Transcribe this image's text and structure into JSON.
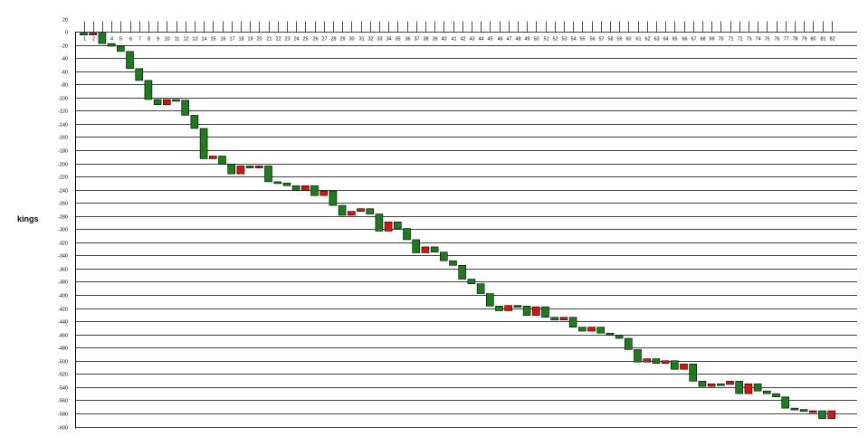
{
  "chart_data": {
    "type": "candlestick",
    "ylabel": "kings",
    "ylim": [
      -600,
      20
    ],
    "yticks": [
      20,
      0,
      -20,
      -40,
      -60,
      -80,
      -100,
      -120,
      -140,
      -160,
      -180,
      -200,
      -220,
      -240,
      -260,
      -280,
      -300,
      -320,
      -340,
      -360,
      -380,
      -400,
      -420,
      -440,
      -460,
      -480,
      -500,
      -520,
      -540,
      -560,
      -580,
      -600
    ],
    "categories": [
      "1",
      "2",
      "3",
      "4",
      "5",
      "6",
      "7",
      "8",
      "9",
      "10",
      "11",
      "12",
      "13",
      "14",
      "15",
      "16",
      "17",
      "18",
      "19",
      "20",
      "21",
      "22",
      "23",
      "24",
      "25",
      "26",
      "27",
      "28",
      "29",
      "30",
      "31",
      "32",
      "33",
      "34",
      "35",
      "36",
      "37",
      "38",
      "39",
      "40",
      "41",
      "42",
      "43",
      "44",
      "45",
      "46",
      "47",
      "48",
      "49",
      "50",
      "51",
      "52",
      "53",
      "54",
      "55",
      "56",
      "57",
      "58",
      "59",
      "60",
      "61",
      "62",
      "63",
      "64",
      "65",
      "66",
      "67",
      "68",
      "69",
      "70",
      "71",
      "72",
      "73",
      "74",
      "75",
      "76",
      "77",
      "78",
      "79",
      "80",
      "81",
      "82"
    ],
    "up_color": "#1e7b1e",
    "down_color": "#dd1111",
    "grid": true,
    "candles": [
      {
        "open": -2,
        "close": -5
      },
      {
        "open": -5,
        "close": -2
      },
      {
        "open": -2,
        "close": -18
      },
      {
        "open": -18,
        "close": -22
      },
      {
        "open": -22,
        "close": -30
      },
      {
        "open": -30,
        "close": -56
      },
      {
        "open": -56,
        "close": -74
      },
      {
        "open": -74,
        "close": -103
      },
      {
        "open": -103,
        "close": -111
      },
      {
        "open": -111,
        "close": -103
      },
      {
        "open": -103,
        "close": -104
      },
      {
        "open": -104,
        "close": -127
      },
      {
        "open": -127,
        "close": -147
      },
      {
        "open": -147,
        "close": -193
      },
      {
        "open": -193,
        "close": -189
      },
      {
        "open": -189,
        "close": -201
      },
      {
        "open": -201,
        "close": -216
      },
      {
        "open": -216,
        "close": -204
      },
      {
        "open": -204,
        "close": -207
      },
      {
        "open": -207,
        "close": -204
      },
      {
        "open": -204,
        "close": -228
      },
      {
        "open": -228,
        "close": -230
      },
      {
        "open": -230,
        "close": -234
      },
      {
        "open": -234,
        "close": -241
      },
      {
        "open": -241,
        "close": -234
      },
      {
        "open": -234,
        "close": -249
      },
      {
        "open": -249,
        "close": -242
      },
      {
        "open": -242,
        "close": -264
      },
      {
        "open": -264,
        "close": -279
      },
      {
        "open": -279,
        "close": -273
      },
      {
        "open": -273,
        "close": -269
      },
      {
        "open": -269,
        "close": -277
      },
      {
        "open": -277,
        "close": -303
      },
      {
        "open": -303,
        "close": -289
      },
      {
        "open": -289,
        "close": -299
      },
      {
        "open": -299,
        "close": -316
      },
      {
        "open": -316,
        "close": -336
      },
      {
        "open": -336,
        "close": -327
      },
      {
        "open": -327,
        "close": -335
      },
      {
        "open": -335,
        "close": -348
      },
      {
        "open": -348,
        "close": -355
      },
      {
        "open": -355,
        "close": -376
      },
      {
        "open": -376,
        "close": -383
      },
      {
        "open": -383,
        "close": -398
      },
      {
        "open": -398,
        "close": -417
      },
      {
        "open": -417,
        "close": -424
      },
      {
        "open": -424,
        "close": -416
      },
      {
        "open": -416,
        "close": -417
      },
      {
        "open": -417,
        "close": -431
      },
      {
        "open": -431,
        "close": -418
      },
      {
        "open": -418,
        "close": -434
      },
      {
        "open": -434,
        "close": -438
      },
      {
        "open": -438,
        "close": -434
      },
      {
        "open": -434,
        "close": -449
      },
      {
        "open": -449,
        "close": -455
      },
      {
        "open": -455,
        "close": -449
      },
      {
        "open": -449,
        "close": -458
      },
      {
        "open": -458,
        "close": -461
      },
      {
        "open": -461,
        "close": -466
      },
      {
        "open": -466,
        "close": -483
      },
      {
        "open": -483,
        "close": -502
      },
      {
        "open": -502,
        "close": -497
      },
      {
        "open": -497,
        "close": -504
      },
      {
        "open": -504,
        "close": -500
      },
      {
        "open": -500,
        "close": -513
      },
      {
        "open": -513,
        "close": -505
      },
      {
        "open": -505,
        "close": -531
      },
      {
        "open": -531,
        "close": -539
      },
      {
        "open": -539,
        "close": -535
      },
      {
        "open": -535,
        "close": -536
      },
      {
        "open": -536,
        "close": -531
      },
      {
        "open": -531,
        "close": -550
      },
      {
        "open": -550,
        "close": -535
      },
      {
        "open": -535,
        "close": -546
      },
      {
        "open": -546,
        "close": -550
      },
      {
        "open": -550,
        "close": -555
      },
      {
        "open": -555,
        "close": -572
      },
      {
        "open": -572,
        "close": -574
      },
      {
        "open": -574,
        "close": -577
      },
      {
        "open": -577,
        "close": -576
      },
      {
        "open": -576,
        "close": -588
      },
      {
        "open": -588,
        "close": -576
      }
    ]
  }
}
